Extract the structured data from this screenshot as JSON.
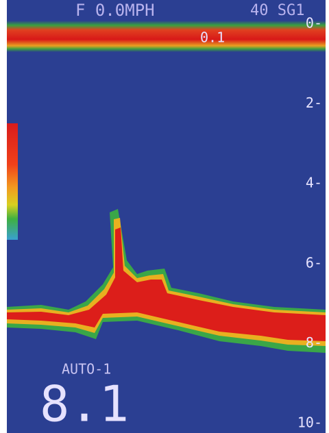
{
  "header": {
    "left": "F 0.0MPH",
    "right": "40 SG1"
  },
  "surface_label": "0.1",
  "depth_scale": [
    "0-",
    "2-",
    "4-",
    "6-",
    "8-",
    "10-"
  ],
  "mode": "AUTO-1",
  "depth_reading": "8.1"
}
